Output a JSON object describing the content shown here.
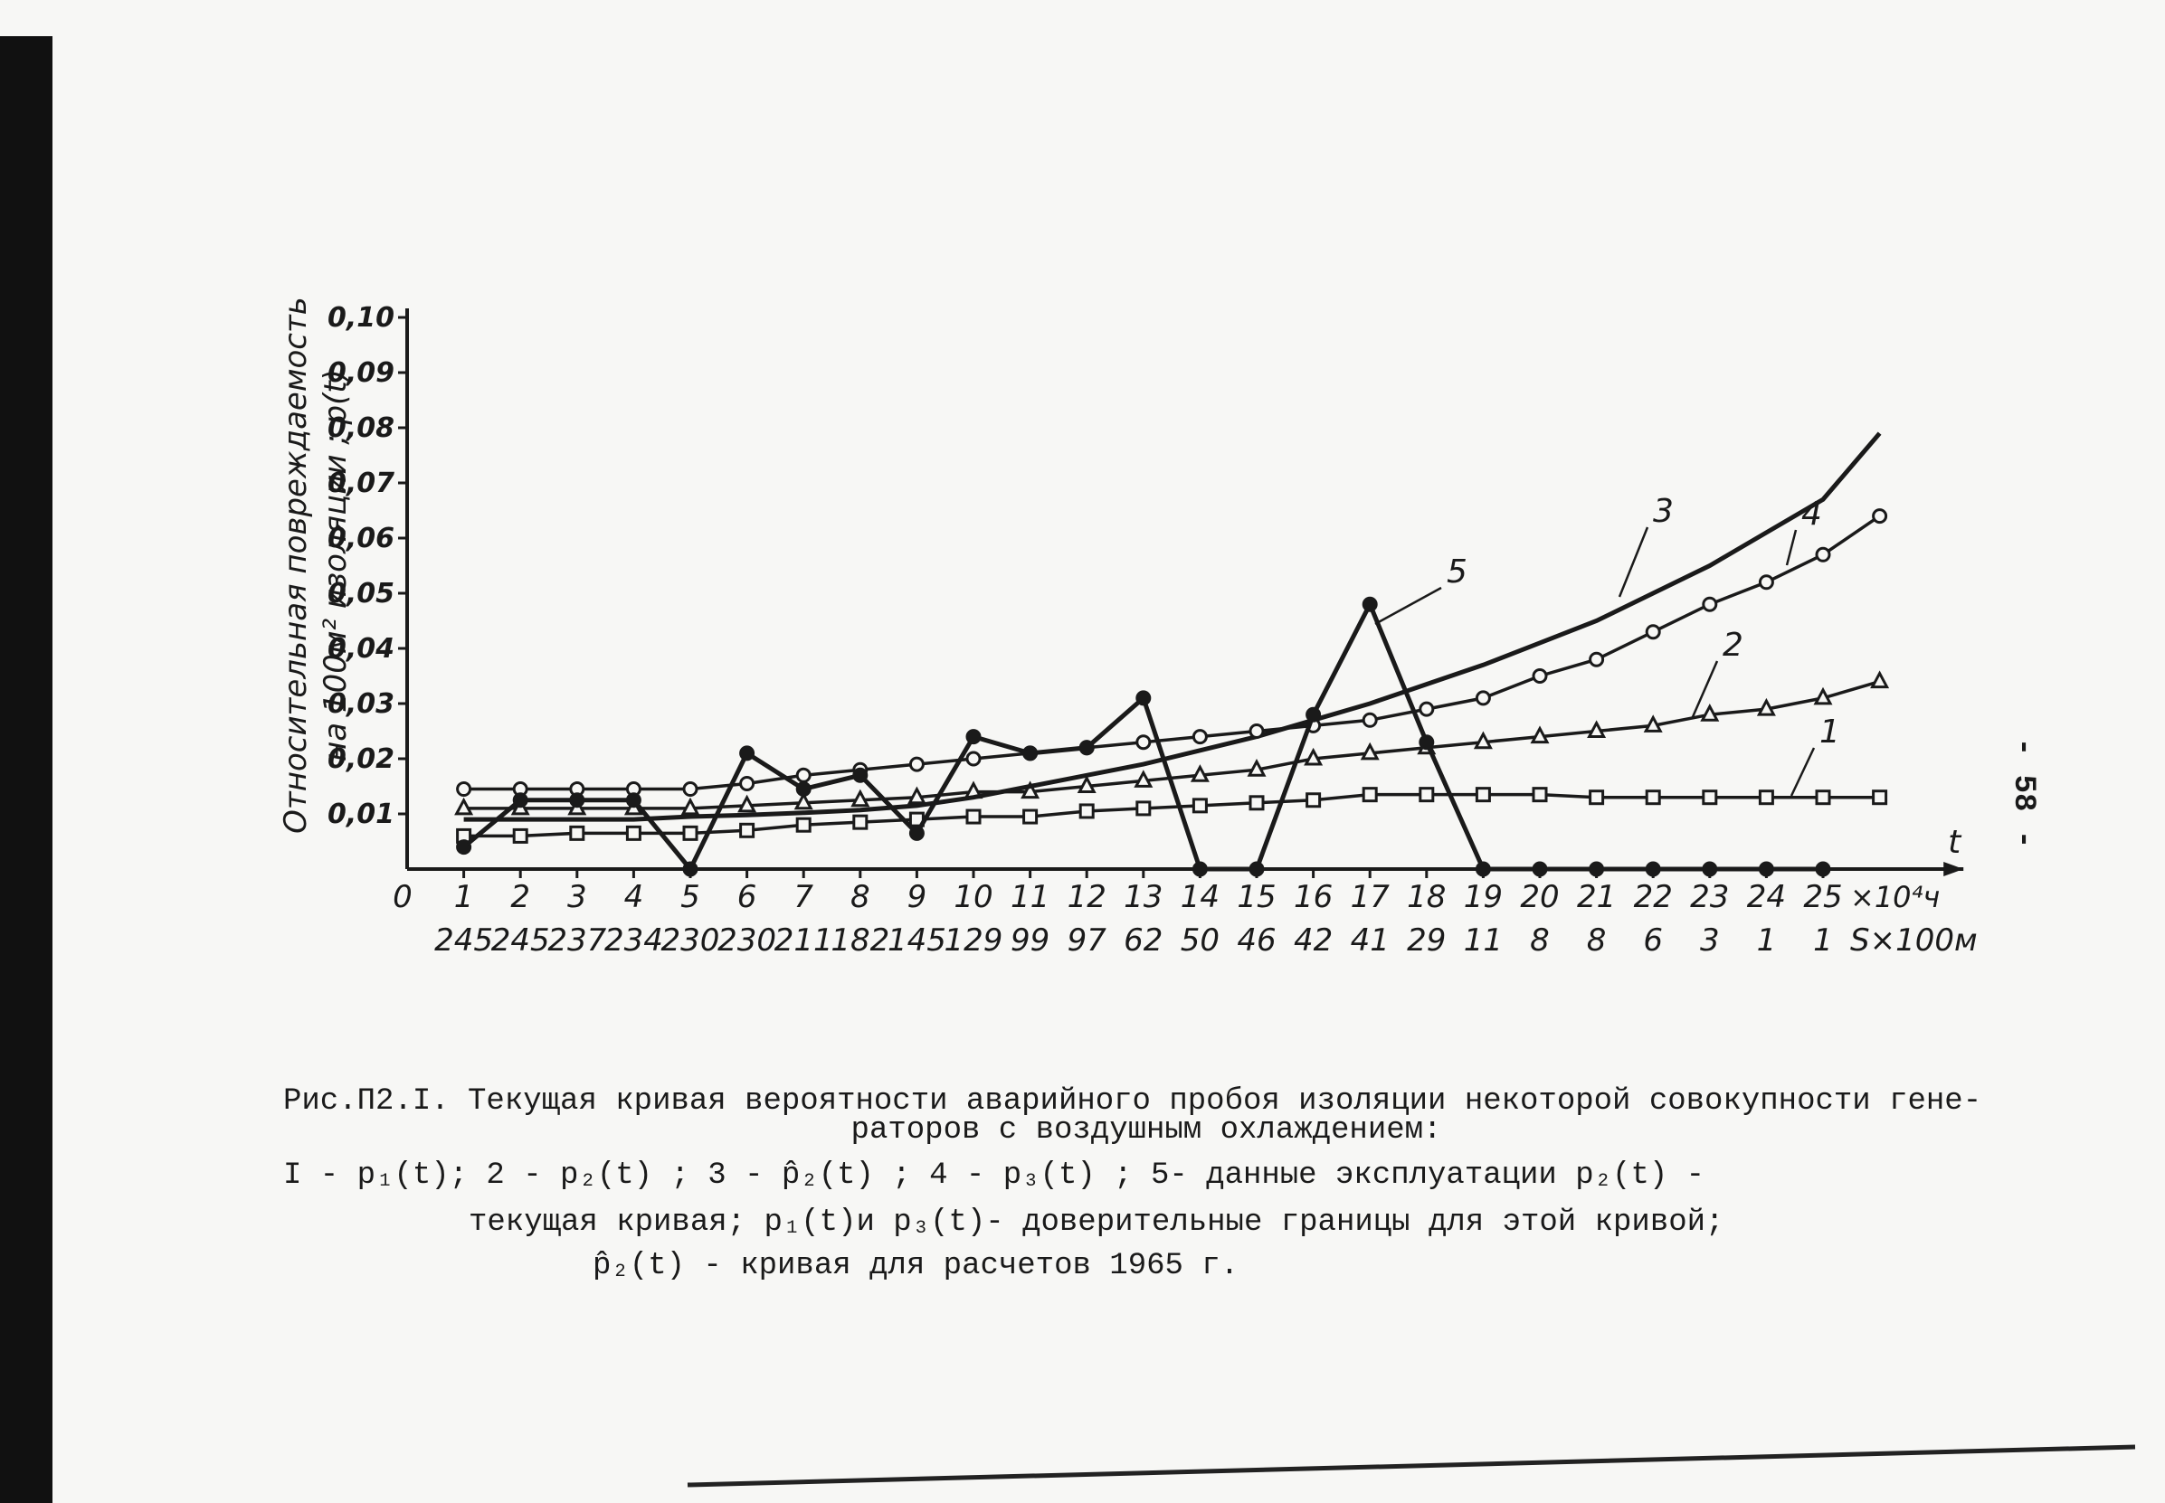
{
  "chart_data": {
    "type": "line",
    "ylabel": [
      "Относительная повреждаемость",
      "на 100м² изоляции ; p(t)"
    ],
    "xlabel": "t",
    "x_unit": "×10⁴ч",
    "s_unit": "S×100м",
    "xlim": [
      0,
      27
    ],
    "ylim": [
      0,
      0.1
    ],
    "xticks": [
      0,
      1,
      2,
      3,
      4,
      5,
      6,
      7,
      8,
      9,
      10,
      11,
      12,
      13,
      14,
      15,
      16,
      17,
      18,
      19,
      20,
      21,
      22,
      23,
      24,
      25
    ],
    "s_labels": [
      "245",
      "245",
      "237",
      "234",
      "230",
      "230",
      "211",
      "182",
      "145",
      "129",
      "99",
      "97",
      "62",
      "50",
      "46",
      "42",
      "41",
      "29",
      "11",
      "8",
      "8",
      "6",
      "3",
      "1",
      "1"
    ],
    "yticks": [
      {
        "value": 0.01,
        "label": "0,01"
      },
      {
        "value": 0.02,
        "label": "0,02"
      },
      {
        "value": 0.03,
        "label": "0,03"
      },
      {
        "value": 0.04,
        "label": "0,04"
      },
      {
        "value": 0.05,
        "label": "0,05"
      },
      {
        "value": 0.06,
        "label": "0,06"
      },
      {
        "value": 0.07,
        "label": "0,07"
      },
      {
        "value": 0.08,
        "label": "0,08"
      },
      {
        "value": 0.09,
        "label": "0,09"
      },
      {
        "value": 0.1,
        "label": "0,10"
      }
    ],
    "grid": false,
    "series": [
      {
        "name": "1",
        "color": "#1a1a1a",
        "marker": "square",
        "x": [
          1,
          2,
          3,
          4,
          5,
          6,
          7,
          8,
          9,
          10,
          11,
          12,
          13,
          14,
          15,
          16,
          17,
          18,
          19,
          20,
          21,
          22,
          23,
          24,
          25,
          26
        ],
        "values": [
          0.006,
          0.006,
          0.0065,
          0.0065,
          0.0065,
          0.007,
          0.008,
          0.0085,
          0.009,
          0.0095,
          0.0095,
          0.0105,
          0.011,
          0.0115,
          0.012,
          0.0125,
          0.0135,
          0.0135,
          0.0135,
          0.0135,
          0.013,
          0.013,
          0.013,
          0.013,
          0.013,
          0.013
        ]
      },
      {
        "name": "2",
        "color": "#1a1a1a",
        "marker": "triangle",
        "x": [
          1,
          2,
          3,
          4,
          5,
          6,
          7,
          8,
          9,
          10,
          11,
          12,
          13,
          14,
          15,
          16,
          17,
          18,
          19,
          20,
          21,
          22,
          23,
          24,
          25,
          26
        ],
        "values": [
          0.011,
          0.011,
          0.011,
          0.011,
          0.011,
          0.0115,
          0.012,
          0.0125,
          0.013,
          0.014,
          0.014,
          0.015,
          0.016,
          0.017,
          0.018,
          0.02,
          0.021,
          0.022,
          0.023,
          0.024,
          0.025,
          0.026,
          0.028,
          0.029,
          0.031,
          0.034
        ]
      },
      {
        "name": "3",
        "color": "#1a1a1a",
        "marker": "none",
        "x": [
          1,
          2,
          3,
          4,
          5,
          6,
          7,
          8,
          9,
          10,
          11,
          12,
          13,
          14,
          15,
          16,
          17,
          18,
          19,
          20,
          21,
          22,
          23,
          24,
          25,
          26
        ],
        "values": [
          0.009,
          0.009,
          0.009,
          0.009,
          0.0095,
          0.0098,
          0.0102,
          0.0107,
          0.0115,
          0.013,
          0.015,
          0.017,
          0.019,
          0.0215,
          0.024,
          0.027,
          0.03,
          0.0335,
          0.037,
          0.041,
          0.045,
          0.05,
          0.055,
          0.061,
          0.067,
          0.079
        ]
      },
      {
        "name": "4",
        "color": "#1a1a1a",
        "marker": "circle",
        "x": [
          1,
          2,
          3,
          4,
          5,
          6,
          7,
          8,
          9,
          10,
          11,
          12,
          13,
          14,
          15,
          16,
          17,
          18,
          19,
          20,
          21,
          22,
          23,
          24,
          25,
          26
        ],
        "values": [
          0.0145,
          0.0145,
          0.0145,
          0.0145,
          0.0145,
          0.0155,
          0.017,
          0.018,
          0.019,
          0.02,
          0.021,
          0.022,
          0.023,
          0.024,
          0.025,
          0.026,
          0.027,
          0.029,
          0.031,
          0.035,
          0.038,
          0.043,
          0.048,
          0.052,
          0.057,
          0.064
        ]
      },
      {
        "name": "5",
        "color": "#1a1a1a",
        "marker": "dot",
        "x": [
          1,
          2,
          3,
          4,
          5,
          6,
          7,
          8,
          9,
          10,
          11,
          12,
          13,
          14,
          15,
          16,
          17,
          18,
          19,
          20,
          21,
          22,
          23,
          24,
          25
        ],
        "values": [
          0.004,
          0.0125,
          0.0125,
          0.0125,
          0,
          0.021,
          0.0145,
          0.017,
          0.0065,
          0.024,
          0.021,
          0.022,
          0.031,
          0,
          0,
          0.028,
          0.048,
          0.023,
          0,
          0,
          0,
          0,
          0,
          0,
          0
        ]
      }
    ]
  },
  "page_number": "- 58 -",
  "caption": [
    "Рис.П2.I. Текущая кривая вероятности аварийного  пробоя изоляции некоторой совокупности гене-",
    "раторов с воздушным охлаждением:",
    "I - p₁(t);      2 - p₂(t)  ; 3 - p̂₂(t)  ; 4 - p₃(t)  ; 5- данные эксплуатации  p₂(t)  -",
    "текущая кривая; p₁(t)и p₃(t)- доверительные границы для этой кривой;",
    "p̂₂(t)  - кривая для расчетов 1965 г."
  ]
}
